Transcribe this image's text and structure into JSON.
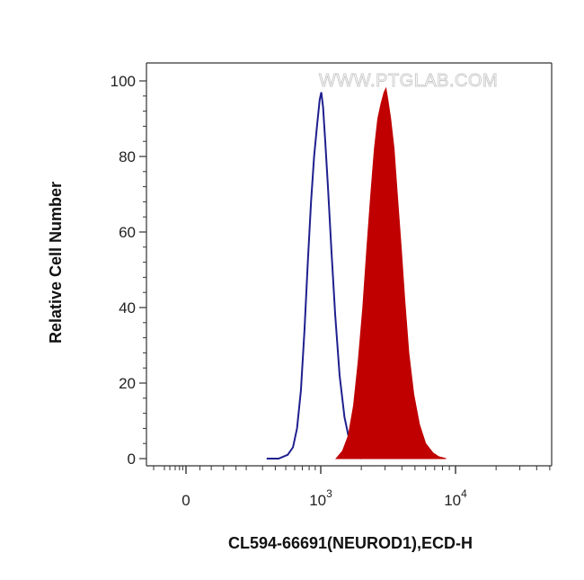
{
  "chart_data": {
    "type": "area",
    "watermark": "WWW.PTGLAB.COM",
    "xlabel": "CL594-66691(NEUROD1),ECD-H",
    "ylabel": "Relative Cell Number",
    "x_scale": "biexponential",
    "ylim": [
      0,
      100
    ],
    "yticks": [
      "0",
      "20",
      "40",
      "60",
      "80",
      "100"
    ],
    "xticks": [
      {
        "value": 0,
        "base": "0",
        "exp": ""
      },
      {
        "value": 1000,
        "base": "10",
        "exp": "3"
      },
      {
        "value": 10000,
        "base": "10",
        "exp": "4"
      }
    ],
    "colors": {
      "control": "#1f1f8f",
      "sample": "#c00000"
    },
    "series": [
      {
        "style": "outline",
        "points": [
          [
            330,
            0
          ],
          [
            430,
            0
          ],
          [
            520,
            1
          ],
          [
            580,
            3
          ],
          [
            630,
            8
          ],
          [
            680,
            18
          ],
          [
            730,
            34
          ],
          [
            780,
            52
          ],
          [
            830,
            68
          ],
          [
            880,
            80
          ],
          [
            930,
            88
          ],
          [
            980,
            95
          ],
          [
            1010,
            97
          ],
          [
            1040,
            93
          ],
          [
            1080,
            84
          ],
          [
            1130,
            72
          ],
          [
            1200,
            55
          ],
          [
            1280,
            38
          ],
          [
            1380,
            22
          ],
          [
            1500,
            11
          ],
          [
            1650,
            4
          ],
          [
            1800,
            1
          ],
          [
            2000,
            0
          ]
        ]
      },
      {
        "style": "filled",
        "points": [
          [
            1300,
            0
          ],
          [
            1450,
            2
          ],
          [
            1600,
            6
          ],
          [
            1750,
            14
          ],
          [
            1900,
            26
          ],
          [
            2050,
            40
          ],
          [
            2200,
            56
          ],
          [
            2350,
            70
          ],
          [
            2500,
            82
          ],
          [
            2650,
            90
          ],
          [
            2800,
            94
          ],
          [
            2950,
            97
          ],
          [
            3050,
            98
          ],
          [
            3150,
            95
          ],
          [
            3300,
            90
          ],
          [
            3500,
            82
          ],
          [
            3700,
            70
          ],
          [
            3950,
            56
          ],
          [
            4200,
            42
          ],
          [
            4500,
            28
          ],
          [
            4900,
            17
          ],
          [
            5400,
            9
          ],
          [
            6000,
            4
          ],
          [
            6800,
            1.5
          ],
          [
            7500,
            0.5
          ],
          [
            8500,
            0
          ]
        ]
      }
    ]
  }
}
